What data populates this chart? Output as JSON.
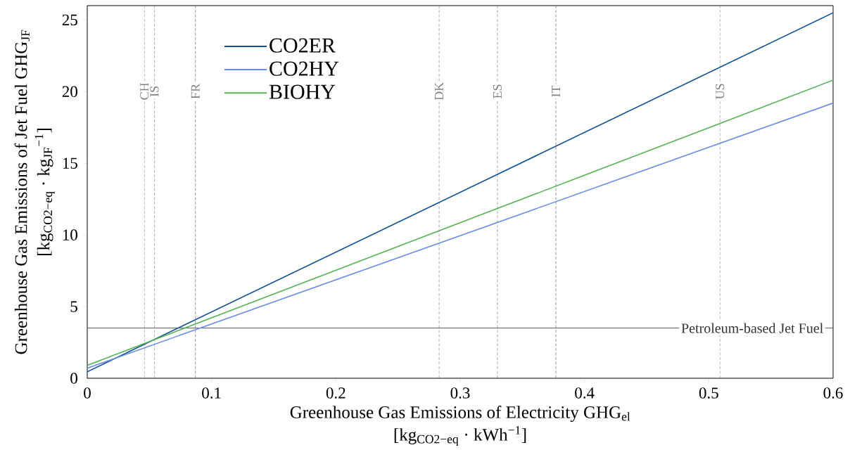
{
  "chart_data": {
    "type": "line",
    "xlabel": "Greenhouse Gas Emissions of Electricity GHG$_{el}$ [kg$_{CO2−eq}$ · kWh$^{−1}$]",
    "ylabel": "Greenhouse Gas Emissions of Jet Fuel GHG$_{JF}$ [kg$_{CO2−eq}$ · kg$_{JF}$$^{−1}$]",
    "series": [
      {
        "name": "CO2ER",
        "color": "#0b4f96",
        "values": [
          0.45,
          25.5
        ]
      },
      {
        "name": "CO2HY",
        "color": "#6a8de8",
        "values": [
          0.7,
          19.2
        ]
      },
      {
        "name": "BIOHY",
        "color": "#56b356",
        "values": [
          0.9,
          20.8
        ]
      }
    ],
    "x": [
      0,
      0.6
    ],
    "xlim": [
      0,
      0.6
    ],
    "ylim": [
      0,
      26
    ],
    "xticks": [
      0,
      0.1,
      0.2,
      0.3,
      0.4,
      0.5,
      0.6
    ],
    "yticks": [
      0,
      5,
      10,
      15,
      20,
      25
    ],
    "ref_lines": [
      {
        "axis": "x",
        "value": 0.046,
        "label": "CH",
        "color": "#808080",
        "line_style": "dashed"
      },
      {
        "axis": "x",
        "value": 0.054,
        "label": "IS",
        "color": "#808080",
        "line_style": "dashed"
      },
      {
        "axis": "x",
        "value": 0.087,
        "label": "FR",
        "color": "#808080",
        "line_style": "dashed"
      },
      {
        "axis": "x",
        "value": 0.283,
        "label": "DK",
        "color": "#808080",
        "line_style": "dashed"
      },
      {
        "axis": "x",
        "value": 0.33,
        "label": "ES",
        "color": "#808080",
        "line_style": "dashed"
      },
      {
        "axis": "x",
        "value": 0.377,
        "label": "IT",
        "color": "#808080",
        "line_style": "dashed"
      },
      {
        "axis": "x",
        "value": 0.509,
        "label": "US",
        "color": "#808080",
        "line_style": "dashed"
      },
      {
        "axis": "y",
        "value": 3.5,
        "label": "Petroleum-based Jet Fuel",
        "color": "#1b2a3a",
        "line_style": "solid"
      }
    ],
    "grid": false,
    "legend": "top left",
    "marker": "none",
    "line_style": "solid"
  }
}
